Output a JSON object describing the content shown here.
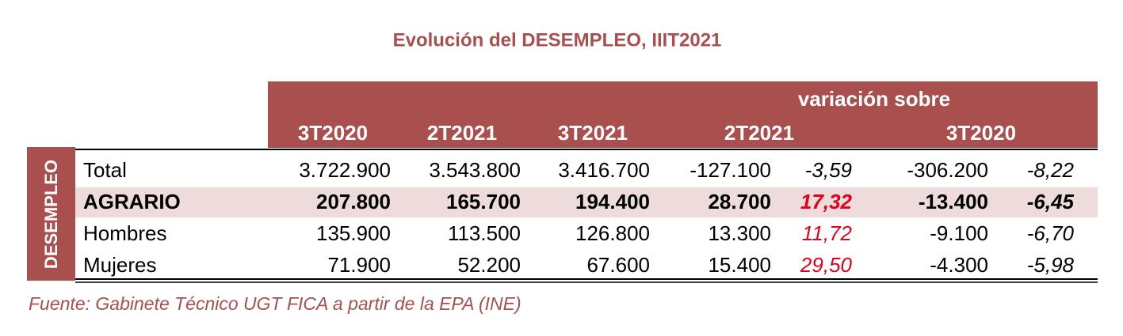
{
  "title": "Evolución del DESEMPLEO, IIIT2021",
  "header": {
    "group": "variación sobre",
    "columns": [
      "3T2020",
      "2T2021",
      "3T2021",
      "2T2021",
      "3T2020"
    ]
  },
  "side_label": "DESEMPLEO",
  "table": {
    "rows": [
      [
        "Total",
        "3.722.900",
        "3.543.800",
        "3.416.700",
        "-127.100",
        "-3,59",
        "-306.200",
        "-8,22"
      ],
      [
        "AGRARIO",
        "207.800",
        "165.700",
        "194.400",
        "28.700",
        "17,32",
        "-13.400",
        "-6,45"
      ],
      [
        "Hombres",
        "135.900",
        "113.500",
        "126.800",
        "13.300",
        "11,72",
        "-9.100",
        "-6,70"
      ],
      [
        "Mujeres",
        "71.900",
        "52.200",
        "67.600",
        "15.400",
        "29,50",
        "-4.300",
        "-5,98"
      ]
    ]
  },
  "source": "Fuente: Gabinete Técnico UGT FICA a partir de la EPA (INE)"
}
